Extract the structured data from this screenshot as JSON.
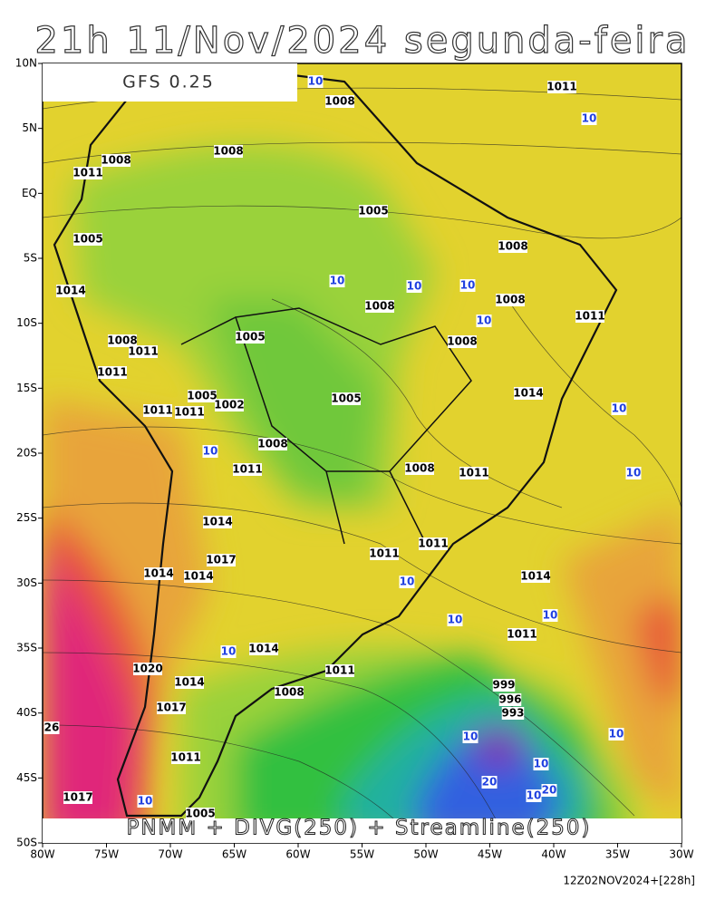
{
  "map": {
    "title": "21h 11/Nov/2024 segunda-feira",
    "model_label": "GFS 0.25",
    "caption": "PNMM + DIVG(250) + Streamline(250)",
    "footer": "12Z02NOV2024+[228h]",
    "lon_ticks": [
      {
        "value": -80,
        "label": "80W"
      },
      {
        "value": -75,
        "label": "75W"
      },
      {
        "value": -70,
        "label": "70W"
      },
      {
        "value": -65,
        "label": "65W"
      },
      {
        "value": -60,
        "label": "60W"
      },
      {
        "value": -55,
        "label": "55W"
      },
      {
        "value": -50,
        "label": "50W"
      },
      {
        "value": -45,
        "label": "45W"
      },
      {
        "value": -40,
        "label": "40W"
      },
      {
        "value": -35,
        "label": "35W"
      },
      {
        "value": -30,
        "label": "30W"
      }
    ],
    "lat_ticks": [
      {
        "value": 10,
        "label": "10N"
      },
      {
        "value": 5,
        "label": "5N"
      },
      {
        "value": 0,
        "label": "EQ"
      },
      {
        "value": -5,
        "label": "5S"
      },
      {
        "value": -10,
        "label": "10S"
      },
      {
        "value": -15,
        "label": "15S"
      },
      {
        "value": -20,
        "label": "20S"
      },
      {
        "value": -25,
        "label": "25S"
      },
      {
        "value": -30,
        "label": "30S"
      },
      {
        "value": -35,
        "label": "35S"
      },
      {
        "value": -40,
        "label": "40S"
      },
      {
        "value": -45,
        "label": "45S"
      },
      {
        "value": -50,
        "label": "50S"
      }
    ],
    "contour_labels": [
      1011,
      1008,
      10,
      10,
      1008,
      1011,
      1008,
      1005,
      1005,
      1008,
      1014,
      1008,
      1011,
      1008,
      10,
      10,
      10,
      10,
      1008,
      1005,
      1008,
      1011,
      1011,
      1005,
      1002,
      1005,
      1014,
      1011,
      1011,
      10,
      10,
      1008,
      1008,
      1011,
      10,
      1011,
      1014,
      1017,
      1011,
      1011,
      1014,
      1014,
      1014,
      10,
      10,
      10,
      1011,
      1014,
      10,
      1011,
      1020,
      1014,
      1008,
      999,
      996,
      993,
      10,
      10,
      10,
      20,
      10,
      20,
      1017,
      10,
      1005,
      26,
      1017,
      1011
    ]
  }
}
